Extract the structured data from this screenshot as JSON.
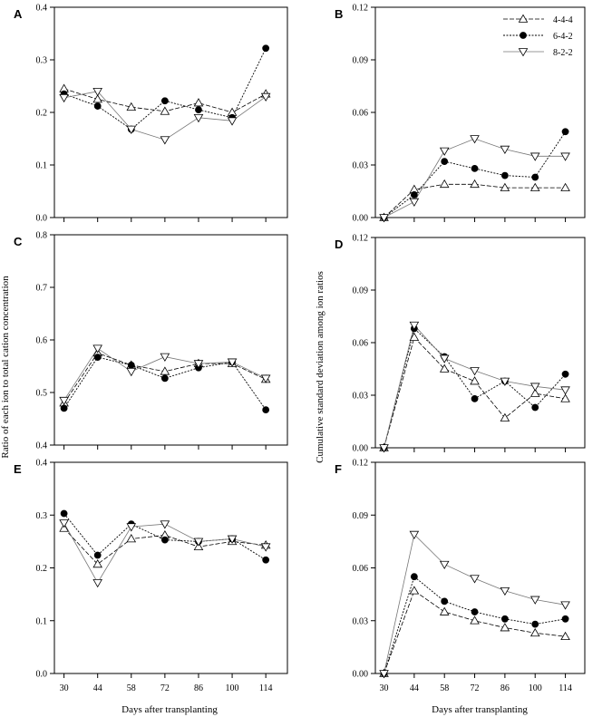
{
  "figure": {
    "ylabel_left": "Ratio of each ion to total cation concentration",
    "ylabel_right": "Cumulative standard deviation among ion ratios",
    "xlabel_left": "Days after transplanting",
    "xlabel_right": "Days after transplanting"
  },
  "legend": [
    {
      "name": "4-4-4",
      "marker": "triangle-up-open"
    },
    {
      "name": "6-4-2",
      "marker": "circle-filled"
    },
    {
      "name": "8-2-2",
      "marker": "triangle-down-open"
    }
  ],
  "colors": {
    "axis": "#000000",
    "line": "#000000",
    "line_light": "#777777"
  },
  "chart_data": [
    {
      "panel": "A",
      "type": "line",
      "x": [
        30,
        44,
        58,
        72,
        86,
        100,
        114
      ],
      "xticks": [
        "30",
        "44",
        "58",
        "72",
        "86",
        "100",
        "114"
      ],
      "ylim": [
        0.0,
        0.4
      ],
      "yticks": [
        "0.0",
        "0.1",
        "0.2",
        "0.3",
        "0.4"
      ],
      "series": [
        {
          "name": "4-4-4",
          "values": [
            0.245,
            0.225,
            0.21,
            0.202,
            0.218,
            0.2,
            0.235
          ]
        },
        {
          "name": "6-4-2",
          "values": [
            0.235,
            0.212,
            0.168,
            0.222,
            0.205,
            0.19,
            0.322
          ]
        },
        {
          "name": "8-2-2",
          "values": [
            0.228,
            0.24,
            0.168,
            0.148,
            0.19,
            0.184,
            0.23
          ]
        }
      ]
    },
    {
      "panel": "B",
      "type": "line",
      "x": [
        30,
        44,
        58,
        72,
        86,
        100,
        114
      ],
      "xticks": [
        "30",
        "44",
        "58",
        "72",
        "86",
        "100",
        "114"
      ],
      "ylim": [
        0.0,
        0.12
      ],
      "yticks": [
        "0.00",
        "0.03",
        "0.06",
        "0.09",
        "0.12"
      ],
      "series": [
        {
          "name": "4-4-4",
          "values": [
            0.0,
            0.016,
            0.019,
            0.019,
            0.017,
            0.017,
            0.017
          ]
        },
        {
          "name": "6-4-2",
          "values": [
            0.0,
            0.013,
            0.032,
            0.028,
            0.024,
            0.023,
            0.049
          ]
        },
        {
          "name": "8-2-2",
          "values": [
            0.0,
            0.009,
            0.038,
            0.045,
            0.039,
            0.035,
            0.035
          ]
        }
      ]
    },
    {
      "panel": "C",
      "type": "line",
      "x": [
        30,
        44,
        58,
        72,
        86,
        100,
        114
      ],
      "xticks": [
        "30",
        "44",
        "58",
        "72",
        "86",
        "100",
        "114"
      ],
      "ylim": [
        0.4,
        0.8
      ],
      "yticks": [
        "0.4",
        "0.5",
        "0.6",
        "0.7",
        "0.8"
      ],
      "series": [
        {
          "name": "4-4-4",
          "values": [
            0.48,
            0.575,
            0.552,
            0.54,
            0.555,
            0.555,
            0.525
          ]
        },
        {
          "name": "6-4-2",
          "values": [
            0.47,
            0.567,
            0.552,
            0.527,
            0.547,
            0.558,
            0.467
          ]
        },
        {
          "name": "8-2-2",
          "values": [
            0.485,
            0.584,
            0.54,
            0.568,
            0.555,
            0.558,
            0.527
          ]
        }
      ]
    },
    {
      "panel": "D",
      "type": "line",
      "x": [
        30,
        44,
        58,
        72,
        86,
        100,
        114
      ],
      "xticks": [
        "30",
        "44",
        "58",
        "72",
        "86",
        "100",
        "114"
      ],
      "ylim": [
        0.0,
        0.12
      ],
      "yticks": [
        "0.00",
        "0.03",
        "0.06",
        "0.09",
        "0.12"
      ],
      "series": [
        {
          "name": "4-4-4",
          "values": [
            0.0,
            0.063,
            0.045,
            0.038,
            0.017,
            0.031,
            0.028
          ]
        },
        {
          "name": "6-4-2",
          "values": [
            0.0,
            0.068,
            0.052,
            0.028,
            0.038,
            0.023,
            0.042
          ]
        },
        {
          "name": "8-2-2",
          "values": [
            0.0,
            0.07,
            0.051,
            0.044,
            0.038,
            0.035,
            0.033
          ]
        }
      ]
    },
    {
      "panel": "E",
      "type": "line",
      "x": [
        30,
        44,
        58,
        72,
        86,
        100,
        114
      ],
      "xticks": [
        "30",
        "44",
        "58",
        "72",
        "86",
        "100",
        "114"
      ],
      "ylim": [
        0.0,
        0.4
      ],
      "yticks": [
        "0.0",
        "0.1",
        "0.2",
        "0.3",
        "0.4"
      ],
      "series": [
        {
          "name": "4-4-4",
          "values": [
            0.275,
            0.207,
            0.255,
            0.262,
            0.24,
            0.25,
            0.243
          ]
        },
        {
          "name": "6-4-2",
          "values": [
            0.303,
            0.224,
            0.283,
            0.253,
            0.25,
            0.255,
            0.215
          ]
        },
        {
          "name": "8-2-2",
          "values": [
            0.285,
            0.172,
            0.278,
            0.283,
            0.25,
            0.255,
            0.24
          ]
        }
      ]
    },
    {
      "panel": "F",
      "type": "line",
      "x": [
        30,
        44,
        58,
        72,
        86,
        100,
        114
      ],
      "xticks": [
        "30",
        "44",
        "58",
        "72",
        "86",
        "100",
        "114"
      ],
      "ylim": [
        0.0,
        0.12
      ],
      "yticks": [
        "0.00",
        "0.03",
        "0.06",
        "0.09",
        "0.12"
      ],
      "series": [
        {
          "name": "4-4-4",
          "values": [
            0.0,
            0.047,
            0.035,
            0.03,
            0.026,
            0.023,
            0.021
          ]
        },
        {
          "name": "6-4-2",
          "values": [
            0.0,
            0.055,
            0.041,
            0.035,
            0.031,
            0.028,
            0.031
          ]
        },
        {
          "name": "8-2-2",
          "values": [
            0.0,
            0.079,
            0.062,
            0.054,
            0.047,
            0.042,
            0.039
          ]
        }
      ]
    }
  ]
}
